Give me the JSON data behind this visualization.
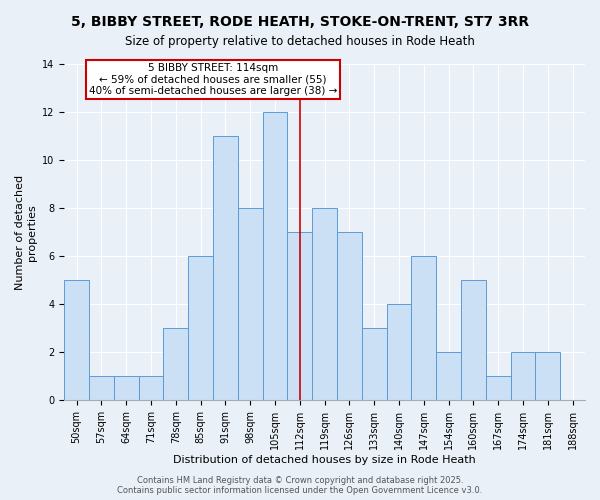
{
  "title": "5, BIBBY STREET, RODE HEATH, STOKE-ON-TRENT, ST7 3RR",
  "subtitle": "Size of property relative to detached houses in Rode Heath",
  "xlabel": "Distribution of detached houses by size in Rode Heath",
  "ylabel": "Number of detached\nproperties",
  "categories": [
    "50sqm",
    "57sqm",
    "64sqm",
    "71sqm",
    "78sqm",
    "85sqm",
    "91sqm",
    "98sqm",
    "105sqm",
    "112sqm",
    "119sqm",
    "126sqm",
    "133sqm",
    "140sqm",
    "147sqm",
    "154sqm",
    "160sqm",
    "167sqm",
    "174sqm",
    "181sqm",
    "188sqm"
  ],
  "values": [
    5,
    1,
    1,
    1,
    3,
    6,
    11,
    8,
    12,
    7,
    8,
    7,
    3,
    4,
    6,
    2,
    5,
    1,
    2,
    2,
    0
  ],
  "bar_color": "#cce0f5",
  "bar_edge_color": "#5b9bd5",
  "reference_line_x_label": "112sqm",
  "reference_line_label": "5 BIBBY STREET: 114sqm",
  "annotation_line1": "← 59% of detached houses are smaller (55)",
  "annotation_line2": "40% of semi-detached houses are larger (38) →",
  "annotation_box_color": "#ffffff",
  "annotation_box_edge_color": "#cc0000",
  "ref_line_color": "#cc0000",
  "ylim": [
    0,
    14
  ],
  "yticks": [
    0,
    2,
    4,
    6,
    8,
    10,
    12,
    14
  ],
  "footer": "Contains HM Land Registry data © Crown copyright and database right 2025.\nContains public sector information licensed under the Open Government Licence v3.0.",
  "background_color": "#eaf0f8",
  "title_fontsize": 10,
  "subtitle_fontsize": 8.5,
  "xlabel_fontsize": 8,
  "ylabel_fontsize": 8,
  "tick_fontsize": 7,
  "footer_fontsize": 6,
  "annot_fontsize": 7.5
}
